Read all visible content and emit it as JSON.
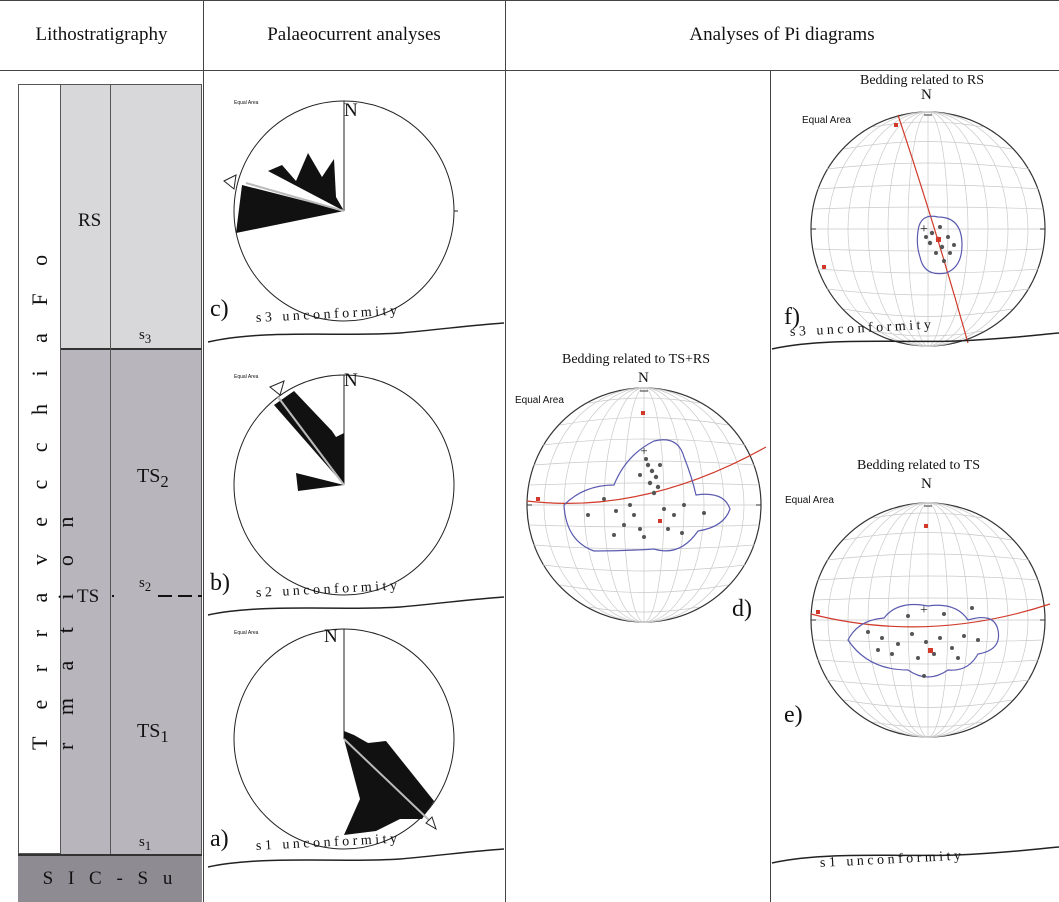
{
  "headers": {
    "lithostratigraphy": "Lithostratigraphy",
    "palaeocurrent": "Palaeocurrent analyses",
    "pi_diagrams": "Analyses of Pi diagrams"
  },
  "column": {
    "formation": "T e r r a v e c c h i a   F o r m a t i o n",
    "rs": "RS",
    "ts": "TS",
    "ts2": "TS",
    "ts2_sub": "2",
    "ts1": "TS",
    "ts1_sub": "1",
    "s3": "s",
    "s3_sub": "3",
    "s2": "s",
    "s2_sub": "2",
    "s1": "s",
    "s1_sub": "1",
    "base": "S I C - S u"
  },
  "palaeocurrent": {
    "c_label": "c)",
    "b_label": "b)",
    "a_label": "a)",
    "equal_area": "Equal Area",
    "north": "N",
    "s3_unconformity": "s 3   u n c o n f o r m i t y",
    "s2_unconformity": "s 2   u n c o n f o r m i t y",
    "s1_unconformity": "s 1   u n c o n f o r m i t y"
  },
  "pi": {
    "d_title": "Bedding related to TS+RS",
    "d_label": "d)",
    "e_title": "Bedding related to TS",
    "e_label": "e)",
    "f_title": "Bedding related to RS",
    "f_label": "f)",
    "equal_area": "Equal Area",
    "north": "N",
    "s3_unconformity": "s 3   u n c o n f o r m i t y",
    "s1_unconformity": "s 1   u n c o n f o r m i t y"
  },
  "colors": {
    "rs_fill": "#d8d8da",
    "ts_fill": "#b8b6bc",
    "base_fill": "#8e8b92",
    "bedding_line": "#d03a2a",
    "contour": "#5b5bb0",
    "pole": "#555555"
  }
}
